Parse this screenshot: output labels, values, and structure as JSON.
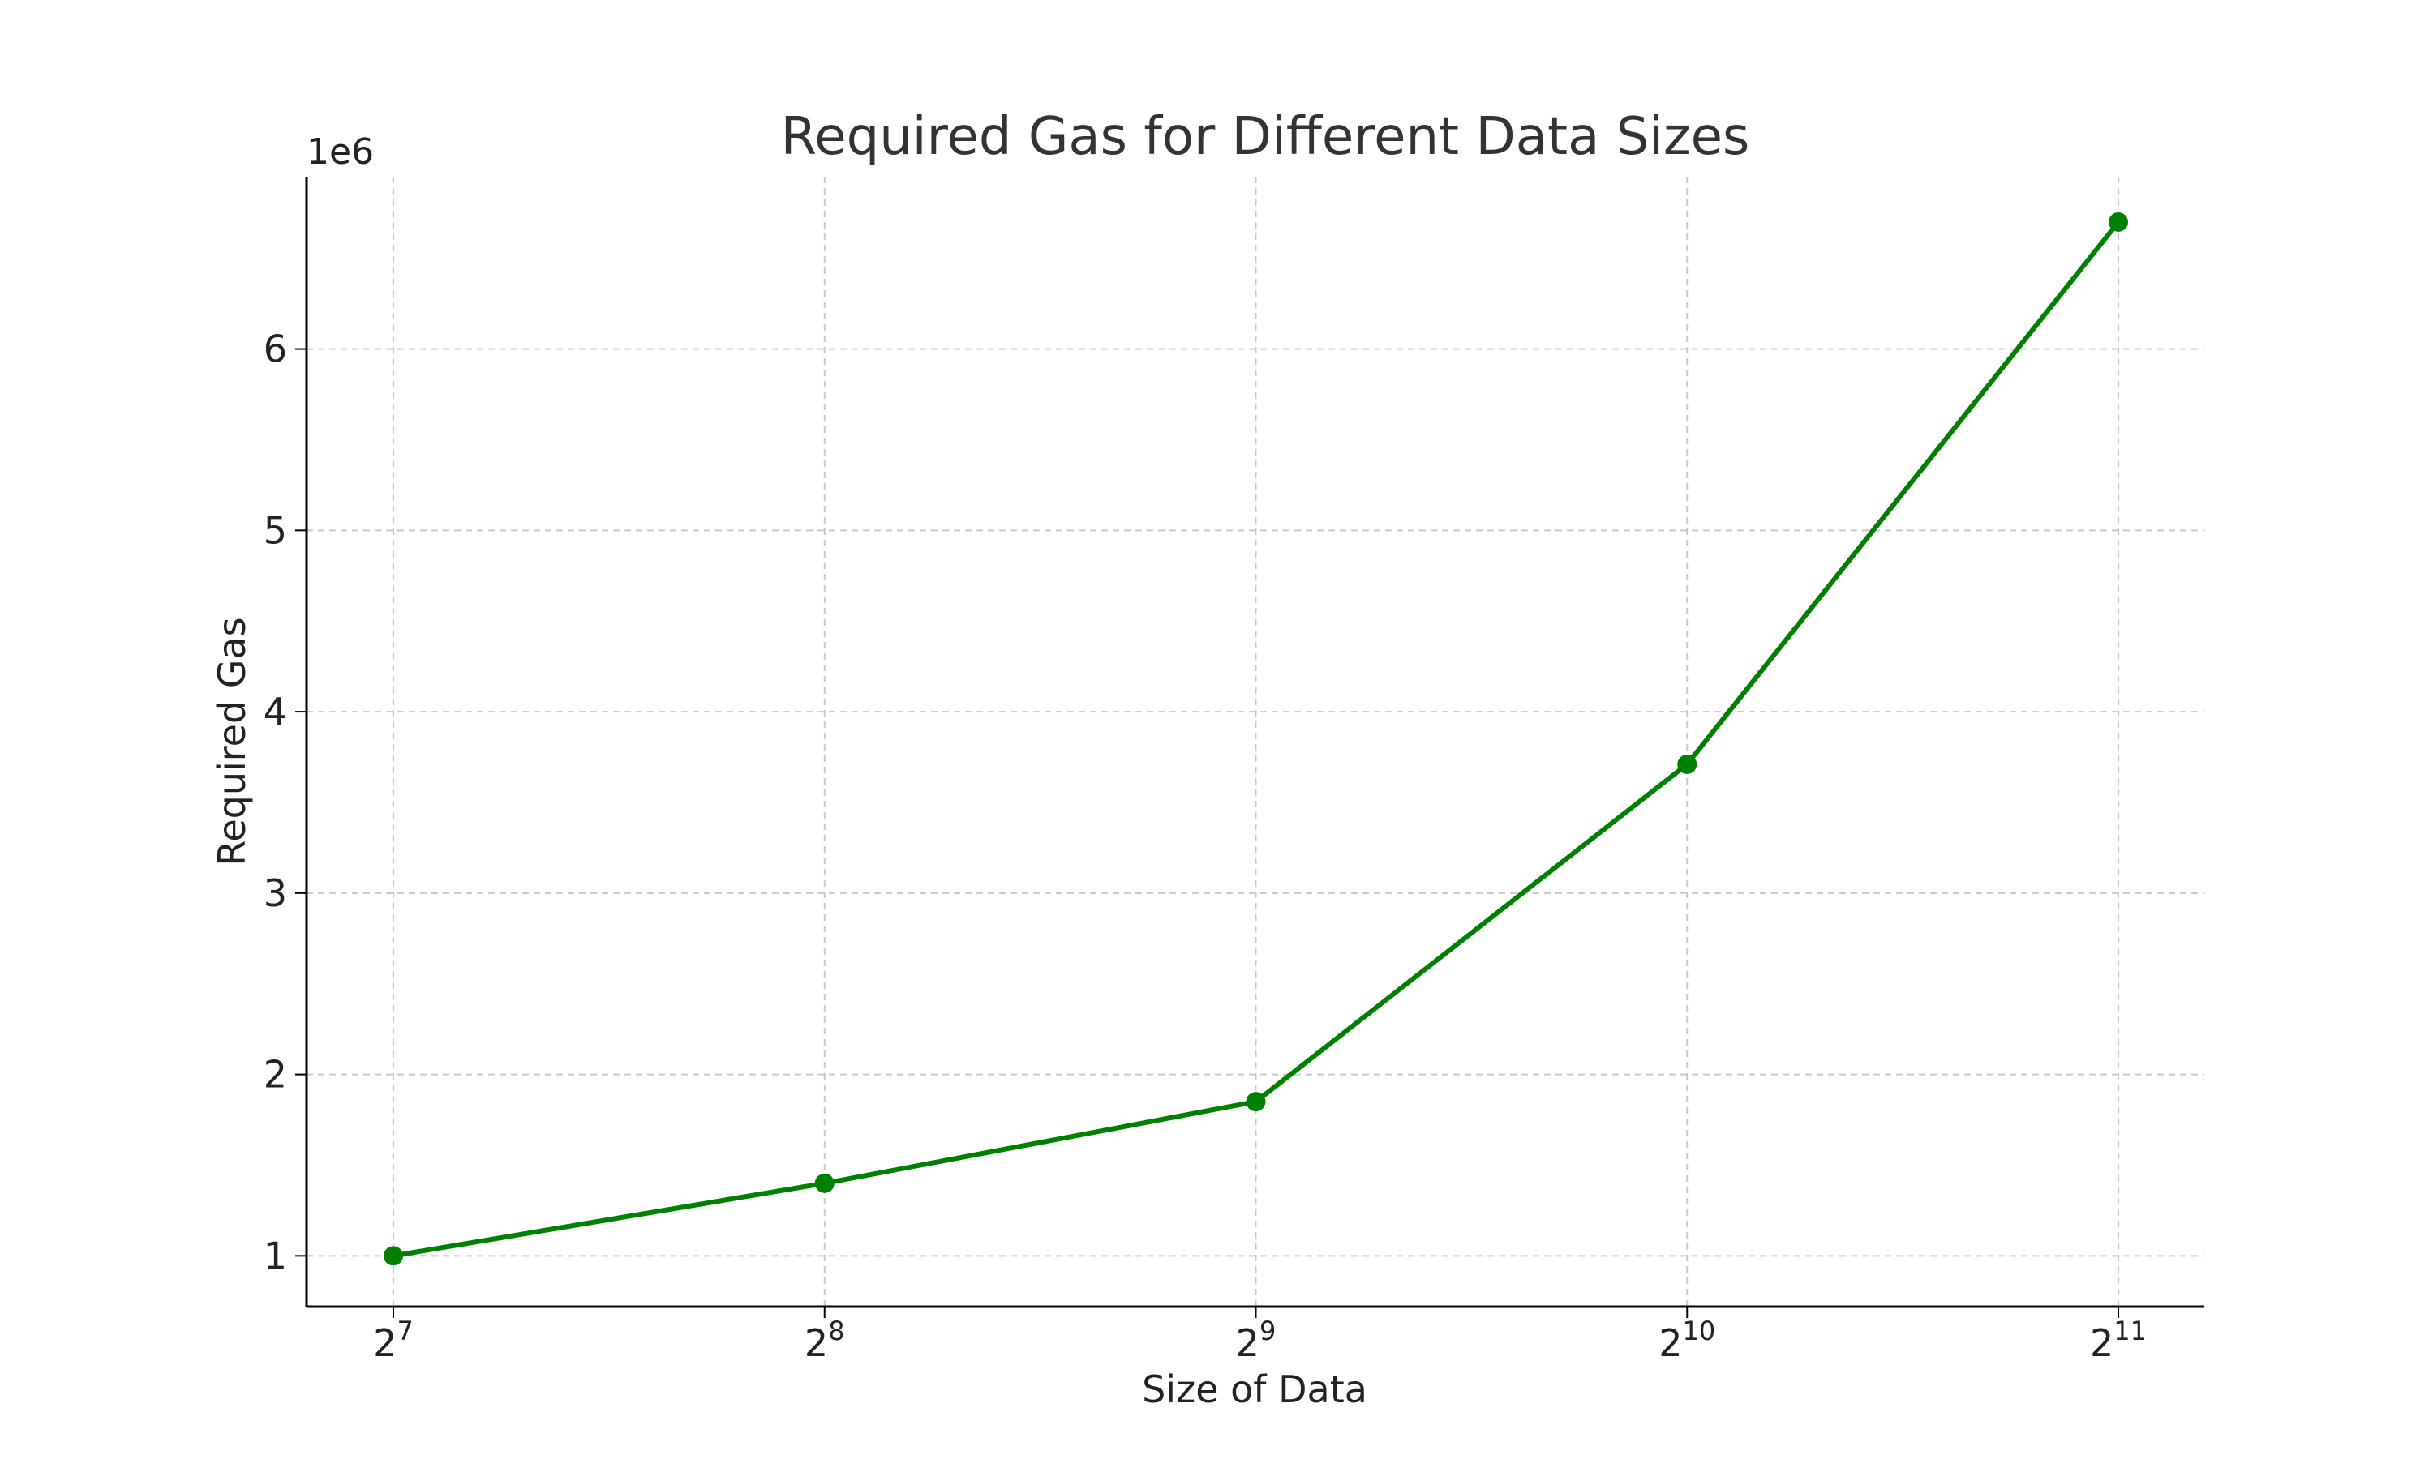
{
  "chart_data": {
    "type": "line",
    "title": "Required Gas for Different Data Sizes",
    "xlabel": "Size of Data",
    "ylabel": "Required Gas",
    "x_scale": "log2",
    "x": [
      128,
      256,
      512,
      1024,
      2048
    ],
    "x_tick_labels": [
      {
        "base": "2",
        "exp": "7"
      },
      {
        "base": "2",
        "exp": "8"
      },
      {
        "base": "2",
        "exp": "9"
      },
      {
        "base": "2",
        "exp": "10"
      },
      {
        "base": "2",
        "exp": "11"
      }
    ],
    "y_tick_values": [
      1,
      2,
      3,
      4,
      5,
      6
    ],
    "y_tick_labels": [
      "1",
      "2",
      "3",
      "4",
      "5",
      "6"
    ],
    "y_offset_label": "1e6",
    "ylim": [
      0.72,
      6.95
    ],
    "grid": true,
    "series": [
      {
        "values": [
          1.0,
          1.4,
          1.85,
          3.71,
          6.7
        ],
        "color": "#008000",
        "marker": "circle"
      }
    ]
  }
}
